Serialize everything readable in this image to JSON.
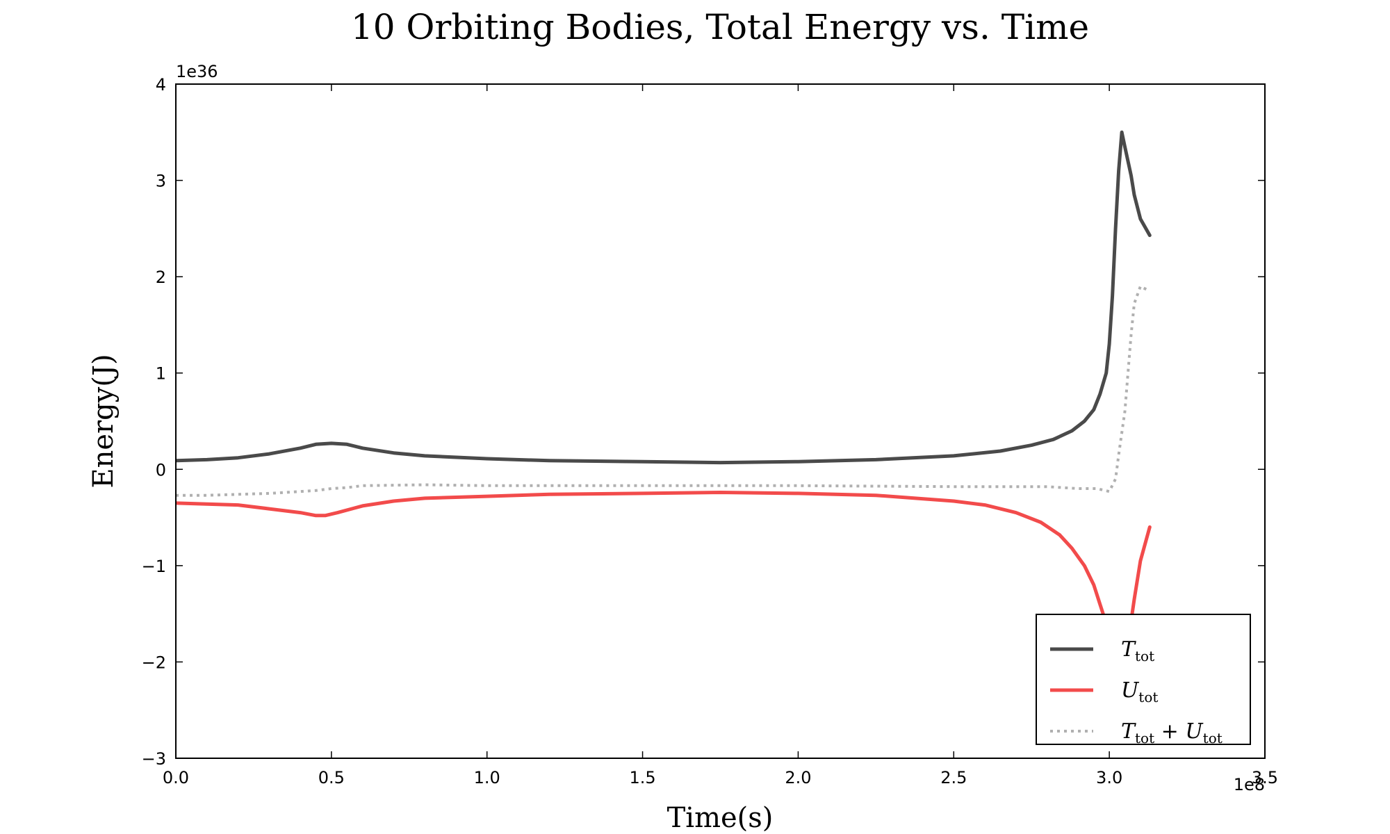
{
  "chart_data": {
    "type": "line",
    "title": "10 Orbiting Bodies, Total Energy vs. Time",
    "xlabel": "Time(s)",
    "ylabel": "Energy(J)",
    "x_multiplier": "1e8",
    "y_multiplier": "1e36",
    "xlim": [
      0.0,
      3.5
    ],
    "ylim": [
      -3,
      4
    ],
    "x_ticks": [
      0.0,
      0.5,
      1.0,
      1.5,
      2.0,
      2.5,
      3.0,
      3.5
    ],
    "x_tick_labels": [
      "0.0",
      "0.5",
      "1.0",
      "1.5",
      "2.0",
      "2.5",
      "3.0",
      "3.5"
    ],
    "y_ticks": [
      -3,
      -2,
      -1,
      0,
      1,
      2,
      3,
      4
    ],
    "y_tick_labels": [
      "−3",
      "−2",
      "−1",
      "0",
      "1",
      "2",
      "3",
      "4"
    ],
    "grid": false,
    "legend_position": "bottom-right",
    "series": [
      {
        "name": "T_tot",
        "legend_main": "T",
        "legend_sub": "tot",
        "color": "#4a4a4a",
        "style": "solid",
        "x": [
          0.0,
          0.1,
          0.2,
          0.3,
          0.4,
          0.45,
          0.5,
          0.55,
          0.6,
          0.7,
          0.8,
          1.0,
          1.2,
          1.5,
          1.75,
          2.0,
          2.25,
          2.5,
          2.65,
          2.75,
          2.82,
          2.88,
          2.92,
          2.95,
          2.97,
          2.99,
          3.0,
          3.01,
          3.02,
          3.03,
          3.04,
          3.05,
          3.06,
          3.07,
          3.08,
          3.1,
          3.13
        ],
        "y": [
          0.09,
          0.1,
          0.12,
          0.16,
          0.22,
          0.26,
          0.27,
          0.26,
          0.22,
          0.17,
          0.14,
          0.11,
          0.09,
          0.08,
          0.07,
          0.08,
          0.1,
          0.14,
          0.19,
          0.25,
          0.31,
          0.4,
          0.5,
          0.62,
          0.78,
          1.0,
          1.3,
          1.8,
          2.5,
          3.1,
          3.5,
          3.35,
          3.2,
          3.05,
          2.85,
          2.6,
          2.43
        ]
      },
      {
        "name": "U_tot",
        "legend_main": "U",
        "legend_sub": "tot",
        "color": "#f24b4b",
        "style": "solid",
        "x": [
          0.0,
          0.1,
          0.2,
          0.3,
          0.4,
          0.45,
          0.48,
          0.52,
          0.6,
          0.7,
          0.8,
          1.0,
          1.2,
          1.5,
          1.75,
          2.0,
          2.25,
          2.5,
          2.6,
          2.7,
          2.78,
          2.84,
          2.88,
          2.92,
          2.95,
          2.97,
          2.99,
          3.0,
          3.01,
          3.02,
          3.06,
          3.08,
          3.1,
          3.13
        ],
        "y": [
          -0.35,
          -0.36,
          -0.37,
          -0.41,
          -0.45,
          -0.48,
          -0.48,
          -0.45,
          -0.38,
          -0.33,
          -0.3,
          -0.28,
          -0.26,
          -0.25,
          -0.24,
          -0.25,
          -0.27,
          -0.33,
          -0.37,
          -0.45,
          -0.55,
          -0.68,
          -0.82,
          -1.0,
          -1.2,
          -1.4,
          -1.6,
          -1.8,
          -2.05,
          -2.2,
          -1.8,
          -1.35,
          -0.95,
          -0.6
        ]
      },
      {
        "name": "T_tot + U_tot",
        "legend_main": "T",
        "legend_sub": "tot",
        "legend_main2": "U",
        "legend_sub2": "tot",
        "legend_op": "+",
        "color": "#b0b0b0",
        "style": "dotted",
        "x": [
          0.0,
          0.1,
          0.2,
          0.3,
          0.4,
          0.45,
          0.5,
          0.55,
          0.6,
          0.8,
          1.0,
          1.5,
          2.0,
          2.5,
          2.8,
          2.9,
          2.96,
          3.0,
          3.02,
          3.03,
          3.05,
          3.06,
          3.07,
          3.08,
          3.1,
          3.13
        ],
        "y": [
          -0.27,
          -0.27,
          -0.26,
          -0.25,
          -0.23,
          -0.22,
          -0.2,
          -0.19,
          -0.17,
          -0.16,
          -0.17,
          -0.17,
          -0.17,
          -0.18,
          -0.18,
          -0.2,
          -0.2,
          -0.23,
          -0.1,
          0.15,
          0.6,
          1.0,
          1.4,
          1.72,
          1.9,
          1.85
        ]
      }
    ]
  }
}
